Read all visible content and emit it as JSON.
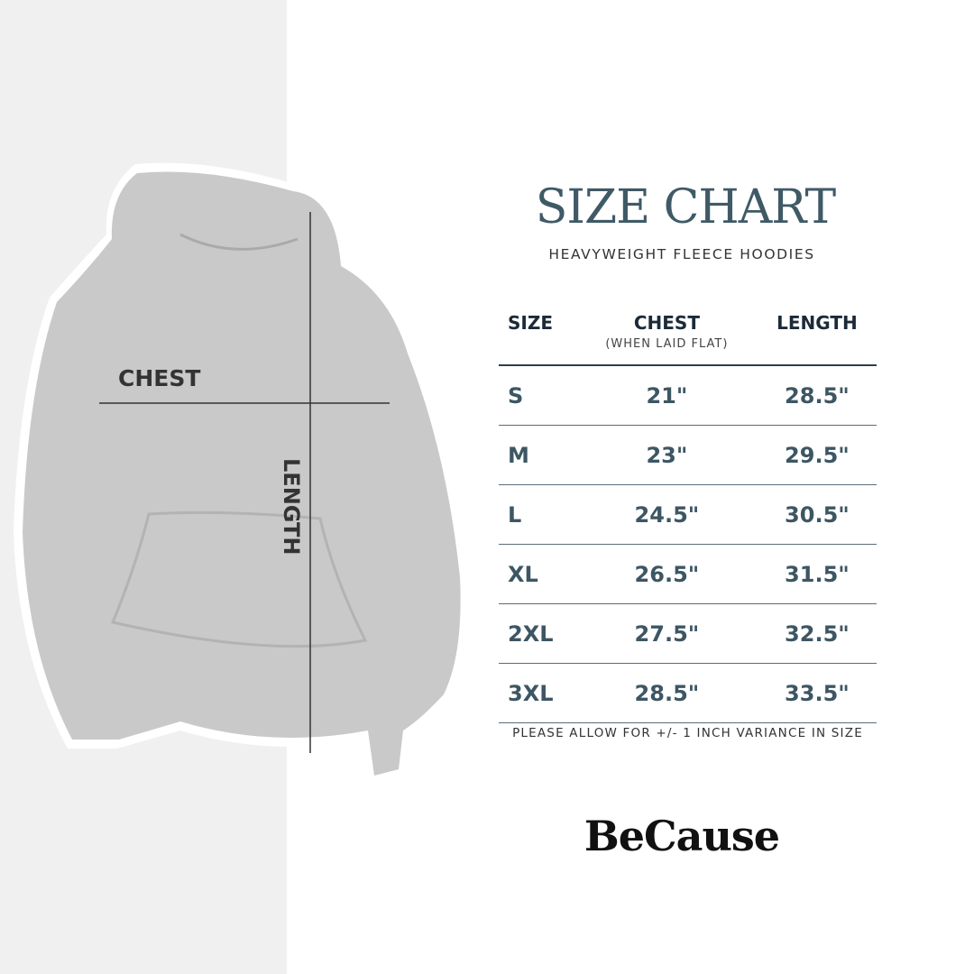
{
  "header": {
    "title": "SIZE CHART",
    "subtitle": "HEAVYWEIGHT FLEECE HOODIES"
  },
  "illustration": {
    "chest_label": "CHEST",
    "length_label": "LENGTH",
    "garment": "heather-gray-hoodie"
  },
  "table": {
    "columns": [
      {
        "label": "SIZE"
      },
      {
        "label": "CHEST",
        "note": "(WHEN LAID FLAT)"
      },
      {
        "label": "LENGTH"
      }
    ],
    "rows": [
      [
        "S",
        "21\"",
        "28.5\""
      ],
      [
        "M",
        "23\"",
        "29.5\""
      ],
      [
        "L",
        "24.5\"",
        "30.5\""
      ],
      [
        "XL",
        "26.5\"",
        "31.5\""
      ],
      [
        "2XL",
        "27.5\"",
        "32.5\""
      ],
      [
        "3XL",
        "28.5\"",
        "33.5\""
      ]
    ]
  },
  "footnote": "PLEASE ALLOW FOR +/- 1 INCH VARIANCE IN SIZE",
  "brand": "BeCause",
  "colors": {
    "title": "#3f5a66",
    "header": "#1c2a38",
    "values": "#3d5663",
    "left_panel": "#f0f0f0",
    "hoodie": "#c9c9c9"
  }
}
